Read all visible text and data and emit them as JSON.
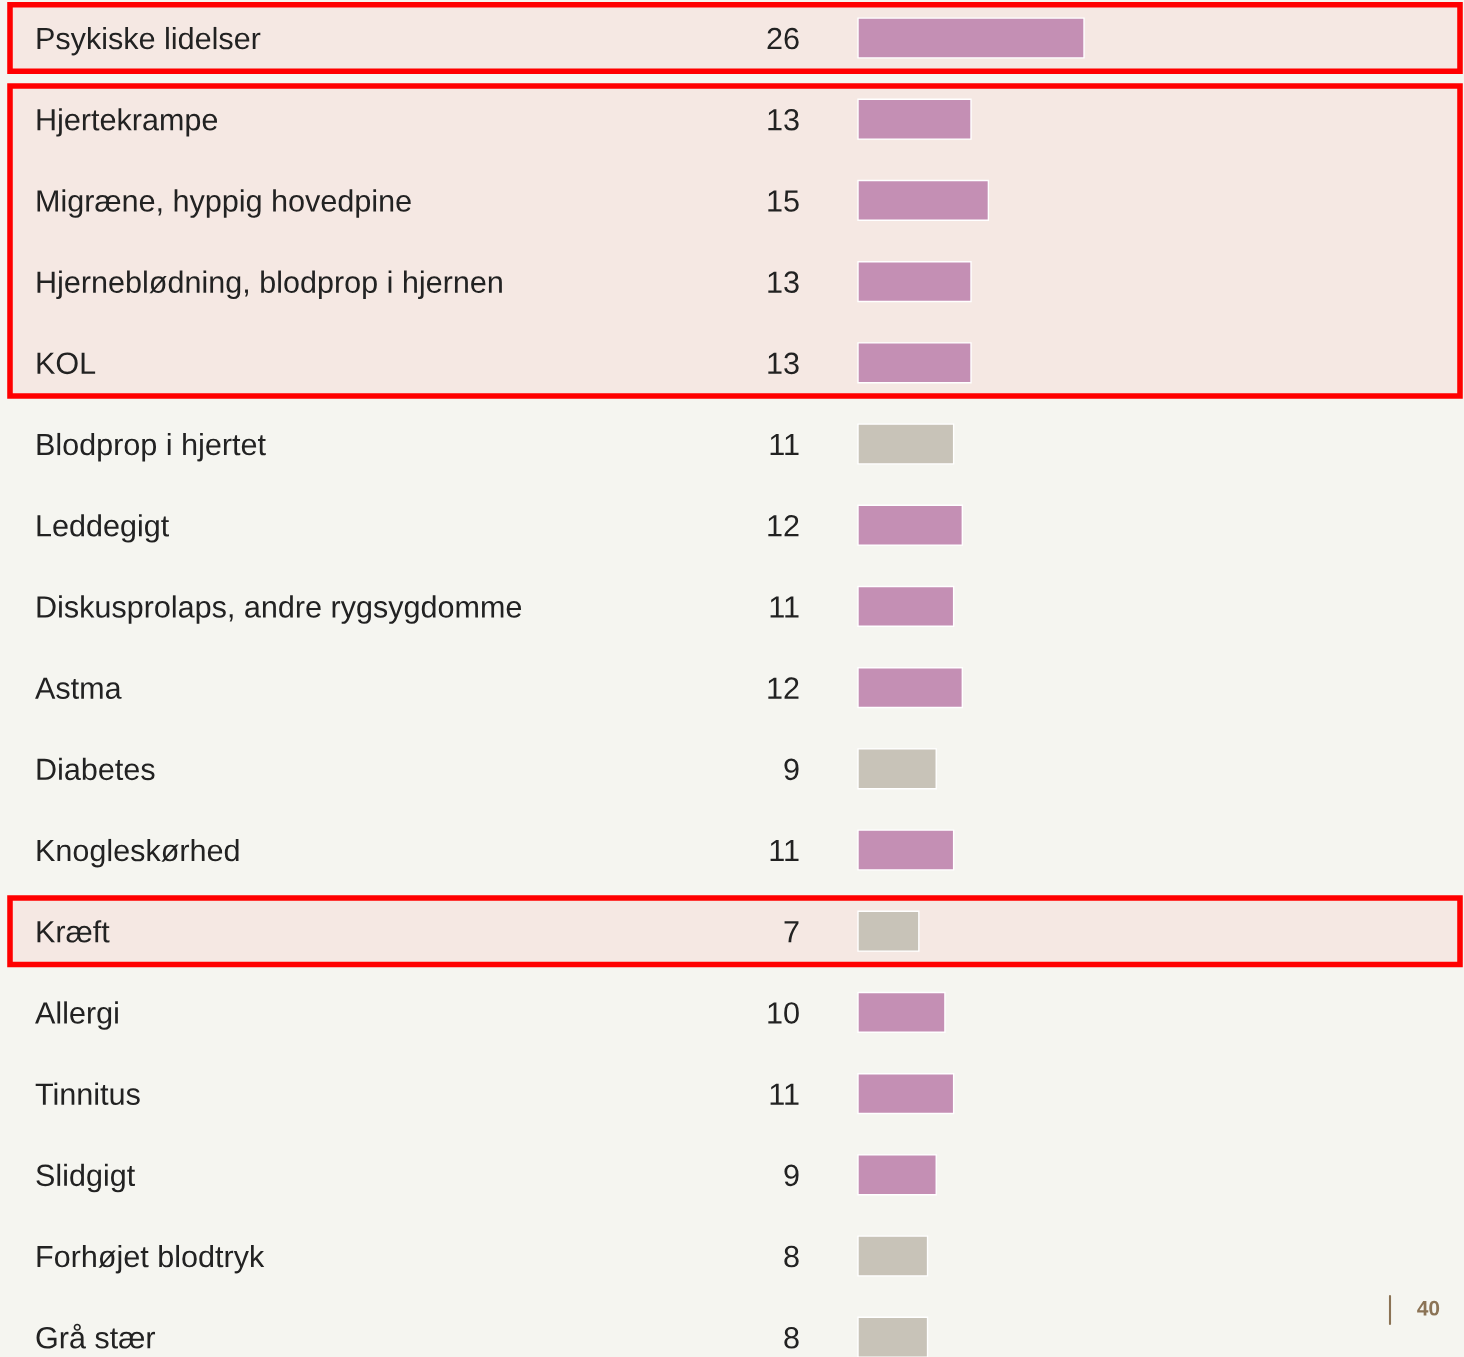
{
  "chart_data": {
    "type": "bar",
    "orientation": "horizontal",
    "data_labels": true,
    "tick_labels": "y",
    "grid": false,
    "legend": false,
    "categories": [
      "Psykiske lidelser",
      "Hjertekrampe",
      "Migræne, hyppig hovedpine",
      "Hjerneblødning, blodprop i hjernen",
      "KOL",
      "Blodprop i hjertet",
      "Leddegigt",
      "Diskusprolaps, andre rygsygdomme",
      "Astma",
      "Diabetes",
      "Knogleskørhed",
      "Kræft",
      "Allergi",
      "Tinnitus",
      "Slidgigt",
      "Forhøjet blodtryk",
      "Grå stær"
    ],
    "values": [
      26,
      13,
      15,
      13,
      13,
      11,
      12,
      11,
      12,
      9,
      11,
      7,
      10,
      11,
      9,
      8,
      8
    ],
    "colors": [
      "#c48fb4",
      "#c48fb4",
      "#c48fb4",
      "#c48fb4",
      "#c48fb4",
      "#c8c3b8",
      "#c48fb4",
      "#c48fb4",
      "#c48fb4",
      "#c8c3b8",
      "#c48fb4",
      "#c8c3b8",
      "#c48fb4",
      "#c48fb4",
      "#c48fb4",
      "#c8c3b8",
      "#c8c3b8"
    ],
    "bands": [
      {
        "axis": "y",
        "from": "Psykiske lidelser",
        "to": "Psykiske lidelser",
        "color": "#ff0000"
      },
      {
        "axis": "y",
        "from": "Hjertekrampe",
        "to": "KOL",
        "color": "#ff0000"
      },
      {
        "axis": "y",
        "from": "Kræft",
        "to": "Kræft",
        "color": "#ff0000"
      }
    ],
    "annotations": [
      "40"
    ]
  }
}
